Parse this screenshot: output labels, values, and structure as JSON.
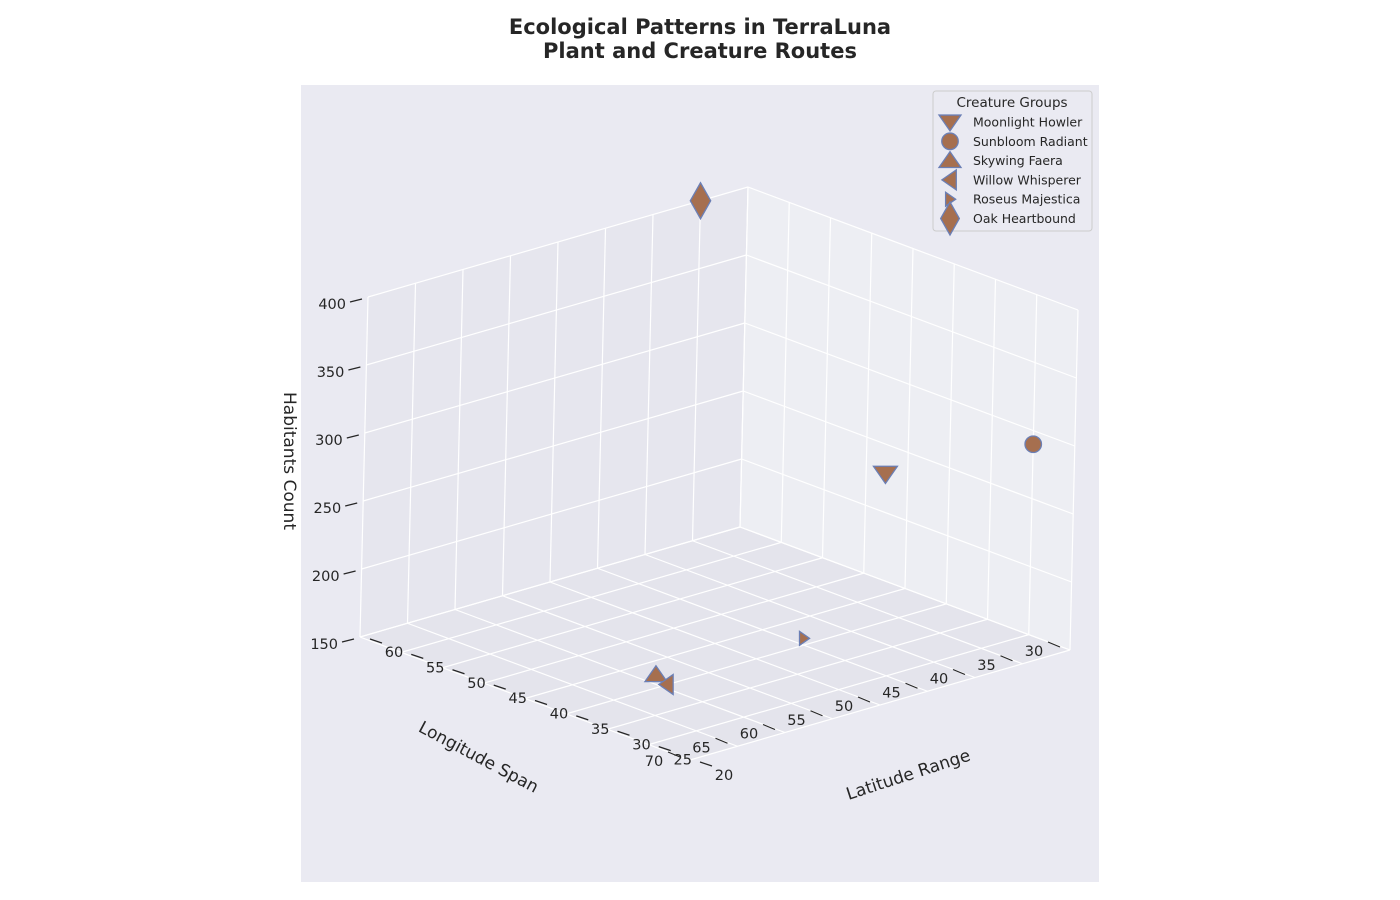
{
  "chart_data": {
    "type": "scatter",
    "title": [
      "Ecological Patterns in TerraLuna",
      "Plant and Creature Routes"
    ],
    "xlabel": "Latitude Range",
    "ylabel": "Longitude Span",
    "zlabel": "Habitants Count",
    "xlim": [
      20,
      60
    ],
    "ylim": [
      30,
      70
    ],
    "zlim": [
      150,
      400
    ],
    "x_ticks": [
      20,
      25,
      30,
      35,
      40,
      45,
      50,
      55,
      60
    ],
    "y_ticks": [
      30,
      35,
      40,
      45,
      50,
      55,
      60,
      65,
      70
    ],
    "z_ticks": [
      150,
      200,
      250,
      300,
      350,
      400
    ],
    "grid": true,
    "legend_title": "Creature Groups",
    "legend_position": "top-right",
    "marker_color": "#a66f4f",
    "marker_edge_color": "#6b7fb5",
    "pane_color": "#eaeaf2",
    "series": [
      {
        "name": "Moonlight Howler",
        "marker": "triangle-down",
        "x": 20,
        "y": 50,
        "z": 320
      },
      {
        "name": "Sunbloom Radiant",
        "marker": "circle",
        "x": 25,
        "y": 30,
        "z": 290
      },
      {
        "name": "Skywing Faera",
        "marker": "triangle-up",
        "x": 30,
        "y": 65,
        "z": 180
      },
      {
        "name": "Willow Whisperer",
        "marker": "triangle-left",
        "x": 40,
        "y": 55,
        "z": 130
      },
      {
        "name": "Roseus Majestica",
        "marker": "triangle-right",
        "x": 35,
        "y": 45,
        "z": 155
      },
      {
        "name": "Oak Heartbound",
        "marker": "diamond",
        "x": 60,
        "y": 35,
        "z": 400
      }
    ]
  }
}
